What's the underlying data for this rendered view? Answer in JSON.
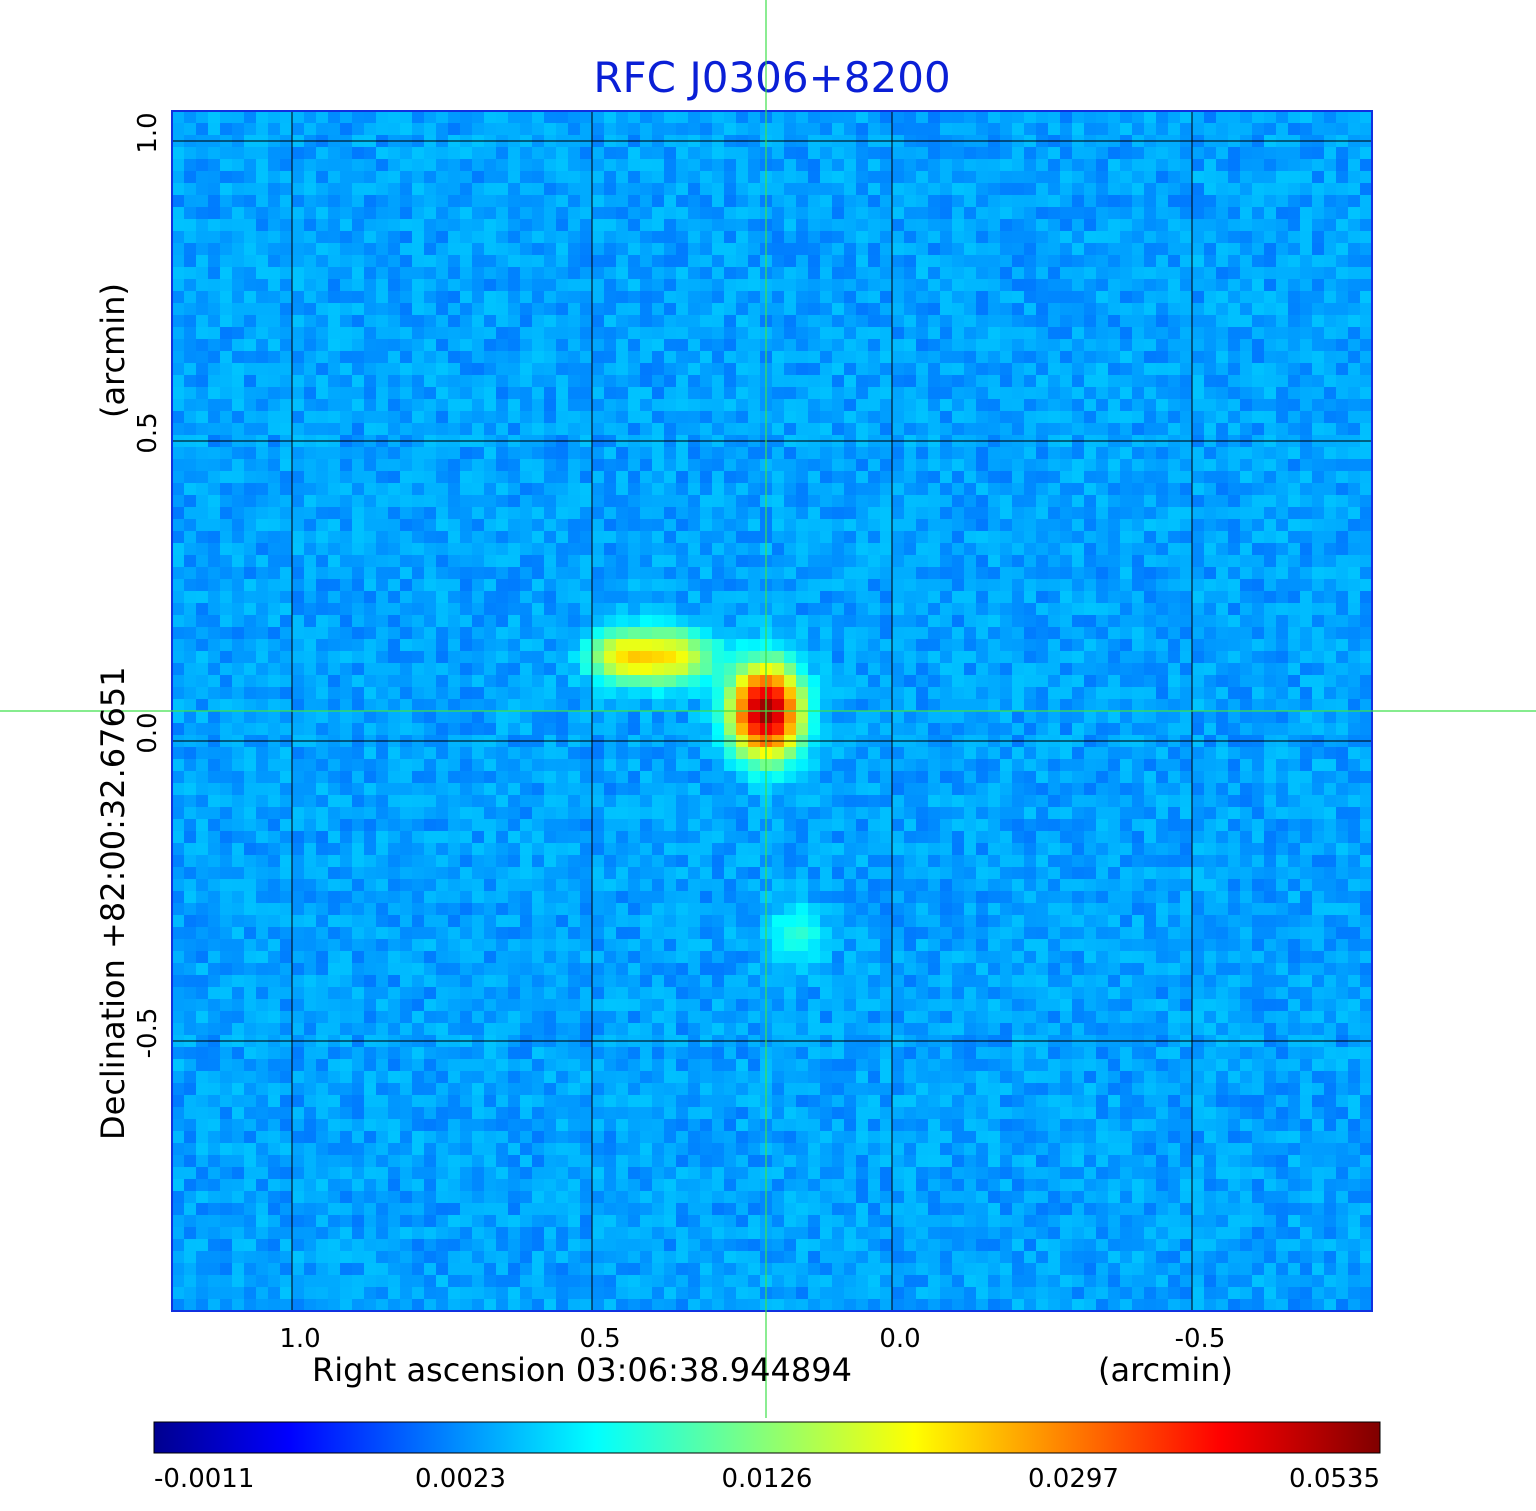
{
  "chart_data": {
    "type": "heatmap",
    "title": "RFC J0306+8200",
    "xlabel": "Right ascension  03:06:38.944894",
    "xunit": "(arcmin)",
    "ylabel": "Declination  +82:00:32.67651",
    "yunit": "(arcmin)",
    "xlim": [
      1.2,
      -0.8
    ],
    "ylim": [
      -0.95,
      1.05
    ],
    "x_ticks": [
      "1.0",
      "0.5",
      "0.0",
      "-0.5"
    ],
    "x_tick_values": [
      1.0,
      0.5,
      0.0,
      -0.5
    ],
    "y_ticks": [
      "1.0",
      "0.5",
      "0.0",
      "-0.5"
    ],
    "y_tick_values": [
      1.0,
      0.5,
      0.0,
      -0.5
    ],
    "grid": true,
    "crosshair": {
      "x": 0.21,
      "y": 0.05,
      "color": "#3ee04a"
    },
    "colormap": "jet",
    "colorbar": {
      "tick_labels": [
        "-0.0011",
        "0.0023",
        "0.0126",
        "0.0297",
        "0.0535"
      ],
      "colors": [
        "#00008f",
        "#0000ff",
        "#00ffff",
        "#ffff00",
        "#ff0000",
        "#800000"
      ]
    },
    "sources": [
      {
        "x": 0.21,
        "y": 0.05,
        "peak": 0.0535,
        "sx": 0.035,
        "sy": 0.045
      },
      {
        "x": 0.37,
        "y": 0.14,
        "peak": 0.018,
        "sx": 0.045,
        "sy": 0.028
      },
      {
        "x": 0.45,
        "y": 0.14,
        "peak": 0.016,
        "sx": 0.035,
        "sy": 0.026
      },
      {
        "x": 0.16,
        "y": -0.32,
        "peak": 0.0045,
        "sx": 0.03,
        "sy": 0.03
      }
    ],
    "background_level": 0.0006
  }
}
